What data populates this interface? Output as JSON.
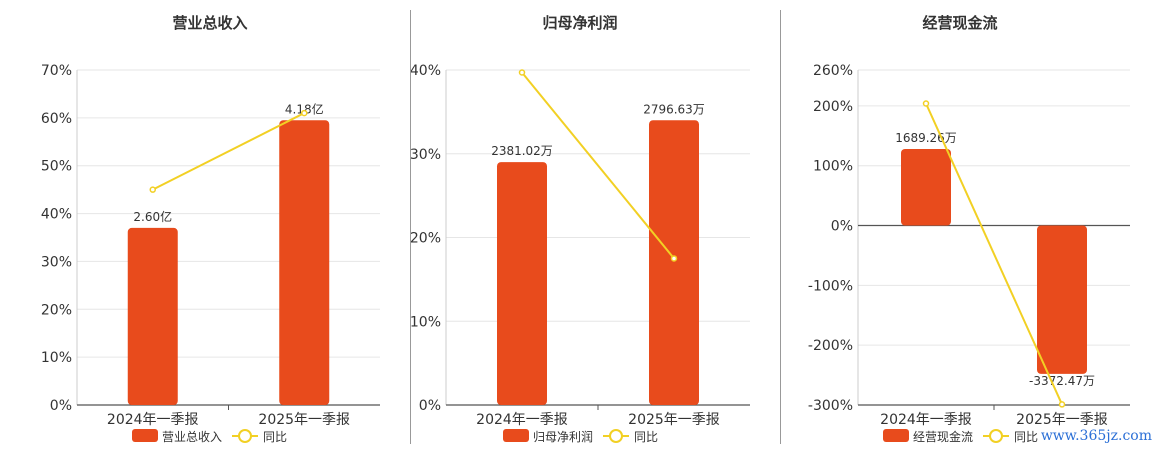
{
  "colors": {
    "bar": "#e84b1c",
    "line": "#f2d024",
    "axis": "#555555",
    "grid": "#e6e6e6",
    "text": "#333333"
  },
  "chart_data": [
    {
      "type": "bar",
      "title": "营业总收入",
      "categories": [
        "2024年一季报",
        "2025年一季报"
      ],
      "bar_series": {
        "name": "营业总收入",
        "values": [
          37,
          59.5
        ],
        "labels": [
          "2.60亿",
          "4.18亿"
        ]
      },
      "line_series": {
        "name": "同比",
        "values": [
          45,
          61
        ]
      },
      "ylim": [
        0,
        70
      ],
      "yticks": [
        0,
        10,
        20,
        30,
        40,
        50,
        60,
        70
      ],
      "yticklabels": [
        "0%",
        "10%",
        "20%",
        "30%",
        "40%",
        "50%",
        "60%",
        "70%"
      ],
      "grid": true,
      "legend": "bottom"
    },
    {
      "type": "bar",
      "title": "归母净利润",
      "categories": [
        "2024年一季报",
        "2025年一季报"
      ],
      "bar_series": {
        "name": "归母净利润",
        "values": [
          29,
          34
        ],
        "labels": [
          "2381.02万",
          "2796.63万"
        ]
      },
      "line_series": {
        "name": "同比",
        "values": [
          39.7,
          17.5
        ]
      },
      "ylim": [
        0,
        40
      ],
      "yticks": [
        0,
        10,
        20,
        30,
        40
      ],
      "yticklabels": [
        "0%",
        "10%",
        "20%",
        "30%",
        "40%"
      ],
      "grid": true,
      "legend": "bottom"
    },
    {
      "type": "bar",
      "title": "经营现金流",
      "categories": [
        "2024年一季报",
        "2025年一季报"
      ],
      "bar_series": {
        "name": "经营现金流",
        "values": [
          128,
          -248
        ],
        "labels": [
          "1689.26万",
          "-3372.47万"
        ]
      },
      "line_series": {
        "name": "同比",
        "values": [
          204,
          -299
        ]
      },
      "ylim": [
        -300,
        260
      ],
      "yticks": [
        -300,
        -200,
        -100,
        0,
        100,
        200,
        260
      ],
      "yticklabels": [
        "-300%",
        "-200%",
        "-100%",
        "0%",
        "100%",
        "200%",
        "260%"
      ],
      "grid": true,
      "legend": "bottom"
    }
  ],
  "watermark": "www.365jz.com"
}
